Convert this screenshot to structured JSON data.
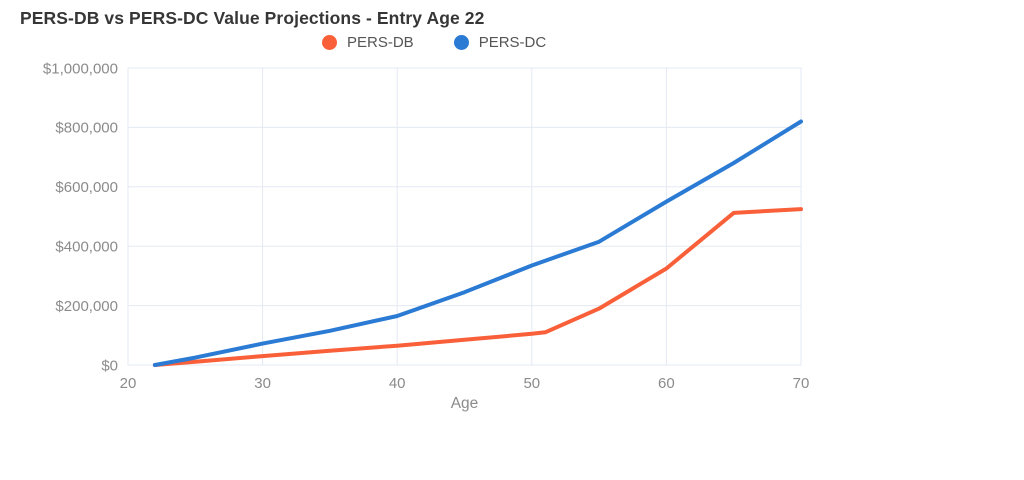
{
  "header": {
    "title": "PERS-DB vs PERS-DC Value Projections - Entry Age 22"
  },
  "legend": {
    "items": [
      {
        "label": "PERS-DB",
        "color": "#F9603A"
      },
      {
        "label": "PERS-DC",
        "color": "#2B7BD4"
      }
    ]
  },
  "colors": {
    "pers_db": "#F9603A",
    "pers_dc": "#2B7BD4",
    "grid": "#E3E8F2",
    "axis_text": "#8B8B8B",
    "title_text": "#363636",
    "background": "#FFFFFF"
  },
  "chart_data": {
    "type": "line",
    "title": "PERS-DB vs PERS-DC Value Projections - Entry Age 22",
    "xlabel": "Age",
    "ylabel": "",
    "xlim": [
      20,
      70
    ],
    "ylim": [
      0,
      1000000
    ],
    "x_ticks": [
      20,
      30,
      40,
      50,
      60,
      70
    ],
    "y_ticks": [
      0,
      200000,
      400000,
      600000,
      800000,
      1000000
    ],
    "y_tick_labels": [
      "$0",
      "$200,000",
      "$400,000",
      "$600,000",
      "$800,000",
      "$1,000,000"
    ],
    "grid": true,
    "legend_position": "top",
    "series": [
      {
        "name": "PERS-DB",
        "color": "#F9603A",
        "points": [
          [
            22,
            0
          ],
          [
            25,
            11000
          ],
          [
            30,
            30000
          ],
          [
            35,
            48000
          ],
          [
            40,
            65000
          ],
          [
            45,
            85000
          ],
          [
            50,
            105000
          ],
          [
            51,
            110000
          ],
          [
            55,
            190000
          ],
          [
            60,
            325000
          ],
          [
            65,
            512000
          ],
          [
            70,
            525000
          ]
        ]
      },
      {
        "name": "PERS-DC",
        "color": "#2B7BD4",
        "points": [
          [
            22,
            0
          ],
          [
            25,
            25000
          ],
          [
            30,
            72000
          ],
          [
            35,
            115000
          ],
          [
            40,
            165000
          ],
          [
            45,
            245000
          ],
          [
            50,
            335000
          ],
          [
            55,
            415000
          ],
          [
            60,
            550000
          ],
          [
            65,
            680000
          ],
          [
            70,
            820000
          ]
        ]
      }
    ]
  }
}
